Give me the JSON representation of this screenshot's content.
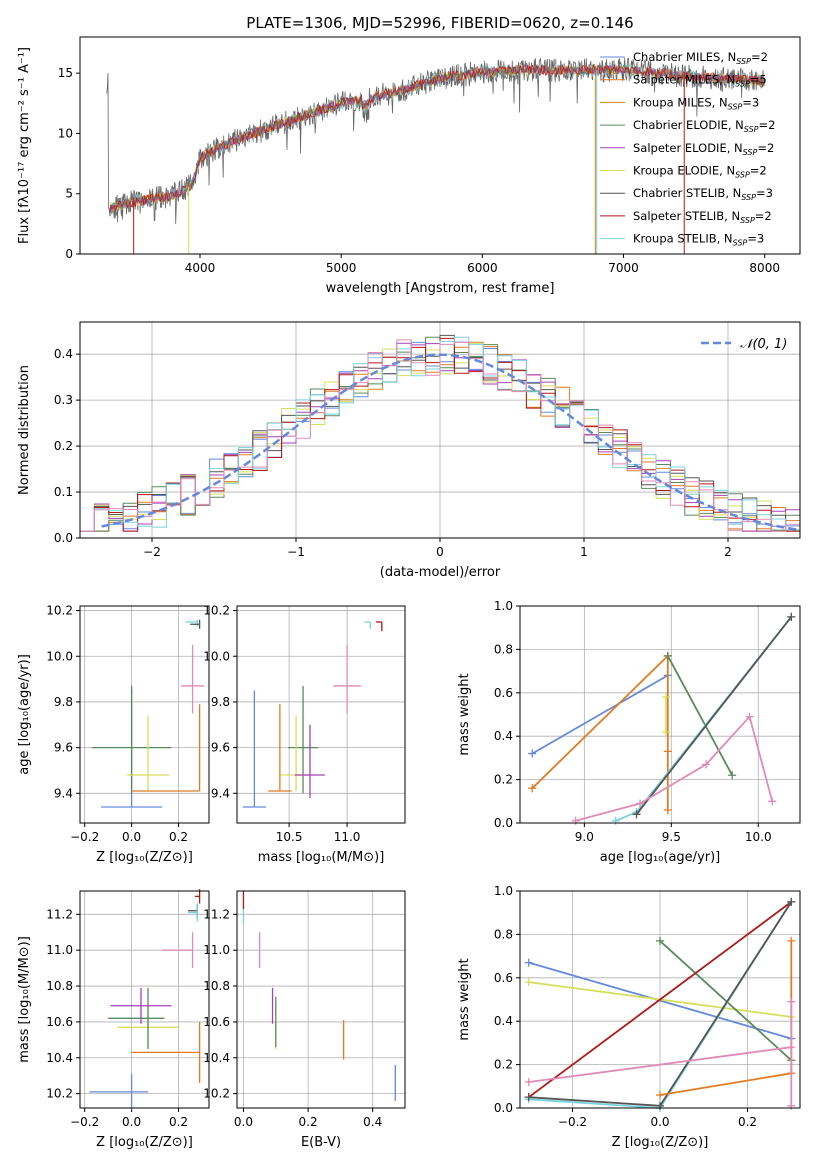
{
  "title": "PLATE=1306, MJD=52996, FIBERID=0620, z=0.146",
  "colors": {
    "chabrier_miles": "#6489dc",
    "salpeter_miles": "#e07b24",
    "kroupa_miles": "#c8841e",
    "chabrier_elodie": "#5a8a5c",
    "salpeter_elodie": "#a640b8",
    "kroupa_elodie": "#d7de5c",
    "chabrier_stelib": "#555555",
    "salpeter_stelib": "#b21818",
    "kroupa_stelib": "#78d2de",
    "pink": "#e08ab8",
    "normal_curve": "#6489dc",
    "grid": "#b0b0b0"
  },
  "chart_data": [
    {
      "id": "spectrum",
      "type": "line",
      "title": "PLATE=1306, MJD=52996, FIBERID=0620, z=0.146",
      "xlabel": "wavelength [Angstrom, rest frame]",
      "ylabel": "Flux [fλ10⁻¹⁷ erg cm⁻² s⁻¹ A⁻¹]",
      "xlim": [
        3150,
        8250
      ],
      "ylim": [
        0,
        18
      ],
      "xticks": [
        "4000",
        "5000",
        "6000",
        "7000",
        "8000"
      ],
      "yticks": [
        "0",
        "5",
        "10",
        "15"
      ],
      "grid": false,
      "legend_position": "upper-right",
      "legend": [
        "Chabrier MILES, N_SSP=2",
        "Salpeter MILES, N_SSP=5",
        "Kroupa MILES, N_SSP=3",
        "Chabrier ELODIE, N_SSP=2",
        "Salpeter ELODIE, N_SSP=2",
        "Kroupa ELODIE, N_SSP=2",
        "Chabrier STELIB, N_SSP=3",
        "Salpeter STELIB, N_SSP=2",
        "Kroupa STELIB, N_SSP=3"
      ],
      "continuum_points": [
        [
          3350,
          3.8
        ],
        [
          3550,
          4.4
        ],
        [
          3800,
          4.8
        ],
        [
          3950,
          5.8
        ],
        [
          4000,
          8.0
        ],
        [
          4200,
          9.2
        ],
        [
          4500,
          10.5
        ],
        [
          4800,
          11.7
        ],
        [
          5000,
          12.5
        ],
        [
          5200,
          12.9
        ],
        [
          5500,
          13.8
        ],
        [
          5700,
          14.6
        ],
        [
          6000,
          15.1
        ],
        [
          6300,
          15.3
        ],
        [
          6600,
          15.2
        ],
        [
          7000,
          15.3
        ],
        [
          7400,
          14.8
        ],
        [
          7800,
          14.5
        ],
        [
          8000,
          14.3
        ]
      ]
    },
    {
      "id": "residual-hist",
      "type": "histogram",
      "xlabel": "(data-model)/error",
      "ylabel": "Normed distribution",
      "xlim": [
        -2.5,
        2.5
      ],
      "ylim": [
        0,
        0.47
      ],
      "xticks": [
        "−2",
        "−1",
        "0",
        "1",
        "2"
      ],
      "yticks": [
        "0.0",
        "0.1",
        "0.2",
        "0.3",
        "0.4"
      ],
      "grid": true,
      "legend": [
        "𝒩(0, 1)"
      ],
      "legend_position": "upper-right",
      "bin_width": 0.1,
      "bin_start": -2.5
    },
    {
      "id": "age-vs-metallicity",
      "type": "scatter",
      "xlabel": "Z [log₁₀(Z/Z⊙)]",
      "ylabel": "age  [log₁₀(age/yr)]",
      "xlim": [
        -0.22,
        0.33
      ],
      "ylim": [
        9.27,
        10.22
      ],
      "xticks": [
        -0.2,
        0.0,
        0.2
      ],
      "xtick_labels": [
        "−0.2",
        "0.0",
        "0.2"
      ],
      "yticks": [
        9.4,
        9.6,
        9.8,
        10.0,
        10.2
      ],
      "ytick_labels": [
        "9.4",
        "9.6",
        "9.8",
        "10.0",
        "10.2"
      ],
      "grid": true,
      "points": [
        {
          "color": "chabrier_miles",
          "x": 0.0,
          "xerr": 0.13,
          "y": 9.34,
          "yerr_lo": 0,
          "yerr_hi": 0.51
        },
        {
          "color": "chabrier_elodie",
          "x": 0.0,
          "xerr": 0.17,
          "y": 9.6,
          "yerr_lo": 0.2,
          "yerr_hi": 0.27
        },
        {
          "color": "kroupa_elodie",
          "x": 0.07,
          "xerr": 0.09,
          "y": 9.48,
          "yerr_lo": 0.07,
          "yerr_hi": 0.26
        },
        {
          "color": "salpeter_miles",
          "x": 0.29,
          "xerr_lo": 0.29,
          "xerr_hi": 0.0,
          "y": 9.41,
          "yerr_lo": 0.0,
          "yerr_hi": 0.38
        },
        {
          "color": "pink",
          "x": 0.26,
          "xerr": 0.05,
          "y": 9.87,
          "yerr_lo": 0.12,
          "yerr_hi": 0.18
        },
        {
          "color": "kroupa_stelib",
          "x": 0.28,
          "xerr_lo": 0.05,
          "xerr_hi": 0.0,
          "y": 10.15,
          "yerr_lo": 0.02,
          "yerr_hi": 0.01
        },
        {
          "color": "chabrier_stelib",
          "x": 0.29,
          "xerr_lo": 0.04,
          "xerr_hi": 0.0,
          "y": 10.14,
          "yerr_lo": 0.02,
          "yerr_hi": 0.02
        }
      ]
    },
    {
      "id": "age-vs-mass",
      "type": "scatter",
      "xlabel": "mass [log₁₀(M/M⊙)]",
      "ylabel": "",
      "xlim": [
        10.05,
        11.5
      ],
      "ylim": [
        9.27,
        10.22
      ],
      "xticks": [
        10.5,
        11.0
      ],
      "xtick_labels": [
        "10.5",
        "11.0"
      ],
      "yticks": [
        9.4,
        9.6,
        9.8,
        10.0,
        10.2
      ],
      "ytick_labels": [
        "9.4",
        "9.6",
        "9.8",
        "10.0",
        "10.2"
      ],
      "grid": true,
      "points": [
        {
          "color": "chabrier_miles",
          "x": 10.2,
          "xerr": 0.1,
          "y": 9.34,
          "yerr_lo": 0,
          "yerr_hi": 0.51
        },
        {
          "color": "chabrier_elodie",
          "x": 10.62,
          "xerr": 0.13,
          "y": 9.6,
          "yerr_lo": 0.2,
          "yerr_hi": 0.27
        },
        {
          "color": "kroupa_elodie",
          "x": 10.56,
          "xerr": 0.14,
          "y": 9.48,
          "yerr_lo": 0.07,
          "yerr_hi": 0.26
        },
        {
          "color": "salpeter_miles",
          "x": 10.42,
          "xerr": 0.1,
          "y": 9.41,
          "yerr_lo": 0,
          "yerr_hi": 0.38
        },
        {
          "color": "salpeter_elodie",
          "x": 10.68,
          "xerr": 0.13,
          "y": 9.48,
          "yerr_lo": 0.1,
          "yerr_hi": 0.22
        },
        {
          "color": "pink",
          "x": 11.0,
          "xerr": 0.12,
          "y": 9.87,
          "yerr_lo": 0.12,
          "yerr_hi": 0.18
        },
        {
          "color": "salpeter_stelib",
          "x": 11.3,
          "xerr_lo": 0.05,
          "xerr_hi": 0.0,
          "y": 10.15,
          "yerr_lo": 0.04,
          "yerr_hi": 0.0
        },
        {
          "color": "kroupa_stelib",
          "x": 11.2,
          "xerr_lo": 0.05,
          "xerr_hi": 0.0,
          "y": 10.15,
          "yerr_lo": 0.03,
          "yerr_hi": 0.0
        }
      ]
    },
    {
      "id": "weight-vs-age",
      "type": "line",
      "xlabel": "age  [log₁₀(age/yr)]",
      "ylabel": "mass weight",
      "xlim": [
        8.63,
        10.24
      ],
      "ylim": [
        0,
        1
      ],
      "xticks": [
        9.0,
        9.5,
        10.0
      ],
      "xtick_labels": [
        "9.0",
        "9.5",
        "10.0"
      ],
      "yticks": [
        0,
        0.2,
        0.4,
        0.6,
        0.8,
        1.0
      ],
      "ytick_labels": [
        "0.0",
        "0.2",
        "0.4",
        "0.6",
        "0.8",
        "1.0"
      ],
      "grid": true,
      "series": [
        {
          "color": "chabrier_miles",
          "x": [
            8.7,
            9.48
          ],
          "y": [
            0.32,
            0.68
          ]
        },
        {
          "color": "salpeter_miles",
          "x": [
            8.7,
            9.48,
            9.48,
            9.48
          ],
          "y": [
            0.16,
            0.77,
            0.33,
            0.06
          ]
        },
        {
          "color": "chabrier_elodie",
          "x": [
            9.48,
            9.85
          ],
          "y": [
            0.77,
            0.22
          ]
        },
        {
          "color": "kroupa_elodie",
          "x": [
            9.47,
            9.47
          ],
          "y": [
            0.58,
            0.42
          ]
        },
        {
          "color": "kroupa_stelib",
          "x": [
            9.18,
            9.3,
            10.19
          ],
          "y": [
            0.01,
            0.05,
            0.95
          ]
        },
        {
          "color": "chabrier_stelib",
          "x": [
            9.3,
            10.19
          ],
          "y": [
            0.04,
            0.95
          ]
        },
        {
          "color": "pink",
          "x": [
            8.95,
            9.32,
            9.7,
            9.95,
            10.08
          ],
          "y": [
            0.01,
            0.09,
            0.27,
            0.49,
            0.1
          ]
        }
      ]
    },
    {
      "id": "mass-vs-metallicity",
      "type": "scatter",
      "xlabel": "Z [log₁₀(Z/Z⊙)]",
      "ylabel": "mass [log₁₀(M/M⊙)]",
      "xlim": [
        -0.22,
        0.33
      ],
      "ylim": [
        10.12,
        11.33
      ],
      "xticks": [
        -0.2,
        0.0,
        0.2
      ],
      "xtick_labels": [
        "−0.2",
        "0.0",
        "0.2"
      ],
      "yticks": [
        10.2,
        10.4,
        10.6,
        10.8,
        11.0,
        11.2
      ],
      "ytick_labels": [
        "10.2",
        "10.4",
        "10.6",
        "10.8",
        "11.0",
        "11.2"
      ],
      "grid": true,
      "points": [
        {
          "color": "chabrier_miles",
          "x": 0.0,
          "xerr_lo": 0.18,
          "xerr_hi": 0.07,
          "y": 10.21,
          "yerr": 0.1
        },
        {
          "color": "salpeter_miles",
          "x": 0.29,
          "xerr_lo": 0.29,
          "xerr_hi": 0.0,
          "y": 10.43,
          "yerr": 0.17
        },
        {
          "color": "kroupa_elodie",
          "x": 0.07,
          "xerr": 0.13,
          "y": 10.57,
          "yerr": 0.12
        },
        {
          "color": "chabrier_elodie",
          "x": 0.07,
          "xerr_lo": 0.17,
          "xerr_hi": 0.07,
          "y": 10.62,
          "yerr": 0.17
        },
        {
          "color": "salpeter_elodie",
          "x": 0.04,
          "xerr": 0.13,
          "y": 10.69,
          "yerr": 0.1
        },
        {
          "color": "pink",
          "x": 0.26,
          "xerr_lo": 0.13,
          "xerr_hi": 0.0,
          "y": 11.0,
          "yerr": 0.1
        },
        {
          "color": "chabrier_stelib",
          "x": 0.28,
          "xerr_lo": 0.04,
          "xerr_hi": 0.0,
          "y": 11.22,
          "yerr": 0.04
        },
        {
          "color": "kroupa_stelib",
          "x": 0.28,
          "xerr_lo": 0.04,
          "xerr_hi": 0.0,
          "y": 11.21,
          "yerr": 0.05
        },
        {
          "color": "salpeter_stelib",
          "x": 0.29,
          "xerr_lo": 0.02,
          "xerr_hi": 0.0,
          "y": 11.3,
          "yerr": 0.04
        }
      ]
    },
    {
      "id": "mass-vs-ebv",
      "type": "scatter",
      "xlabel": "E(B-V)",
      "ylabel": "",
      "xlim": [
        -0.02,
        0.5
      ],
      "ylim": [
        10.12,
        11.33
      ],
      "xticks": [
        0.0,
        0.2,
        0.4
      ],
      "xtick_labels": [
        "0.0",
        "0.2",
        "0.4"
      ],
      "yticks": [
        10.2,
        10.4,
        10.6,
        10.8,
        11.0,
        11.2
      ],
      "ytick_labels": [
        "10.2",
        "10.4",
        "10.6",
        "10.8",
        "11.0",
        "11.2"
      ],
      "grid": true,
      "points": [
        {
          "color": "chabrier_miles",
          "x": 0.47,
          "y": 10.26,
          "yerr": 0.1
        },
        {
          "color": "salpeter_miles",
          "x": 0.31,
          "y": 10.5,
          "yerr": 0.11
        },
        {
          "color": "kroupa_elodie",
          "x": 0.1,
          "y": 10.57,
          "yerr": 0.12
        },
        {
          "color": "chabrier_elodie",
          "x": 0.1,
          "y": 10.6,
          "yerr": 0.14
        },
        {
          "color": "salpeter_elodie",
          "x": 0.09,
          "y": 10.69,
          "yerr": 0.1
        },
        {
          "color": "pink",
          "x": 0.05,
          "y": 11.0,
          "yerr": 0.1
        },
        {
          "color": "kroupa_stelib",
          "x": 0.0,
          "y": 11.2,
          "yerr": 0.05
        },
        {
          "color": "salpeter_stelib",
          "x": 0.0,
          "y": 11.28,
          "yerr": 0.05
        }
      ]
    },
    {
      "id": "weight-vs-metallicity",
      "type": "line",
      "xlabel": "Z [log₁₀(Z/Z⊙)]",
      "ylabel": "mass weight",
      "xlim": [
        -0.32,
        0.32
      ],
      "ylim": [
        0,
        1
      ],
      "xticks": [
        -0.2,
        0.0,
        0.2
      ],
      "xtick_labels": [
        "−0.2",
        "0.0",
        "0.2"
      ],
      "yticks": [
        0,
        0.2,
        0.4,
        0.6,
        0.8,
        1.0
      ],
      "ytick_labels": [
        "0.0",
        "0.2",
        "0.4",
        "0.6",
        "0.8",
        "1.0"
      ],
      "grid": true,
      "series": [
        {
          "color": "chabrier_miles",
          "x": [
            -0.3,
            0.3
          ],
          "y": [
            0.67,
            0.32
          ]
        },
        {
          "color": "kroupa_elodie",
          "x": [
            -0.3,
            0.3
          ],
          "y": [
            0.58,
            0.42
          ]
        },
        {
          "color": "chabrier_elodie",
          "x": [
            0.0,
            0.3
          ],
          "y": [
            0.77,
            0.22
          ]
        },
        {
          "color": "salpeter_stelib",
          "x": [
            -0.3,
            0.3
          ],
          "y": [
            0.05,
            0.95
          ]
        },
        {
          "color": "kroupa_stelib",
          "x": [
            -0.3,
            0.0,
            0.3
          ],
          "y": [
            0.04,
            0.0,
            0.95
          ]
        },
        {
          "color": "chabrier_stelib",
          "x": [
            -0.3,
            0.0,
            0.3
          ],
          "y": [
            0.05,
            0.01,
            0.95
          ]
        },
        {
          "color": "pink",
          "x": [
            -0.3,
            0.3
          ],
          "y": [
            0.12,
            0.28
          ]
        },
        {
          "color": "salpeter_miles",
          "x": [
            0.0,
            0.3,
            0.3
          ],
          "y": [
            0.06,
            0.16,
            0.77
          ]
        },
        {
          "color": "pink",
          "x": [
            0.3,
            0.3
          ],
          "y": [
            0.49,
            0.01
          ]
        }
      ]
    }
  ]
}
